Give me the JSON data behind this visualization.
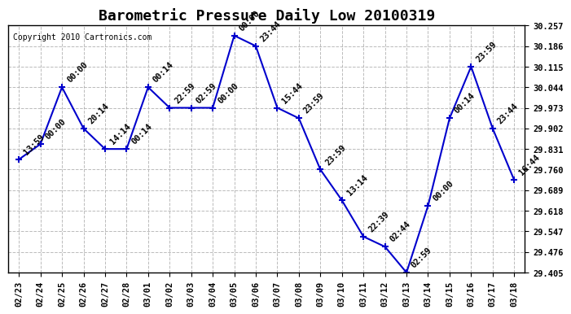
{
  "title": "Barometric Pressure Daily Low 20100319",
  "copyright": "Copyright 2010 Cartronics.com",
  "x_labels": [
    "02/23",
    "02/24",
    "02/25",
    "02/26",
    "02/27",
    "02/28",
    "03/01",
    "03/02",
    "03/03",
    "03/04",
    "03/05",
    "03/06",
    "03/07",
    "03/08",
    "03/09",
    "03/10",
    "03/11",
    "03/12",
    "03/13",
    "03/14",
    "03/15",
    "03/16",
    "03/17",
    "03/18"
  ],
  "y_values": [
    29.795,
    29.848,
    30.044,
    29.902,
    29.831,
    29.831,
    30.044,
    29.973,
    29.973,
    29.973,
    30.222,
    30.186,
    29.973,
    29.937,
    29.76,
    29.654,
    29.529,
    29.494,
    29.405,
    29.635,
    29.937,
    30.115,
    29.902,
    29.724
  ],
  "time_labels": [
    "13:59",
    "00:00",
    "00:00",
    "20:14",
    "14:14",
    "00:14",
    "00:14",
    "22:59",
    "02:59",
    "00:00",
    "00:00",
    "23:44",
    "15:44",
    "23:59",
    "23:59",
    "13:14",
    "22:39",
    "02:44",
    "02:59",
    "00:00",
    "00:14",
    "23:59",
    "23:44",
    "16:44"
  ],
  "y_ticks": [
    29.405,
    29.476,
    29.547,
    29.618,
    29.689,
    29.76,
    29.831,
    29.902,
    29.973,
    30.044,
    30.115,
    30.186,
    30.257
  ],
  "y_min": 29.405,
  "y_max": 30.257,
  "line_color": "#0000cc",
  "marker_color": "#0000cc",
  "bg_color": "#ffffff",
  "grid_color": "#aaaaaa",
  "title_fontsize": 13,
  "annotation_fontsize": 7.5
}
